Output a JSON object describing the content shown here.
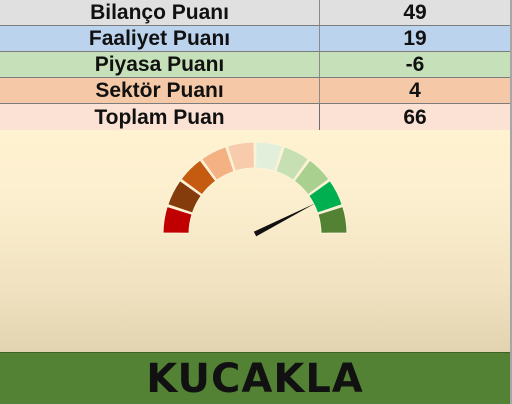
{
  "scorecard": {
    "rows": [
      {
        "label": "Bilanço Puanı",
        "value": "49"
      },
      {
        "label": "Faaliyet Puanı",
        "value": "19"
      },
      {
        "label": "Piyasa Puanı",
        "value": "-6"
      },
      {
        "label": "Sektör Puanı",
        "value": "4"
      },
      {
        "label": "Toplam Puan",
        "value": "66"
      }
    ]
  },
  "gauge": {
    "segment_colors": [
      "#c00000",
      "#843c0c",
      "#c55a11",
      "#f4b183",
      "#f8cbad",
      "#e2efda",
      "#c6e0b4",
      "#a9d08e",
      "#00b050",
      "#548235"
    ],
    "needle_color": "#111111",
    "needle_fraction": 0.85
  },
  "verdict": {
    "text": "KUCAKLA",
    "color": "#548235"
  }
}
